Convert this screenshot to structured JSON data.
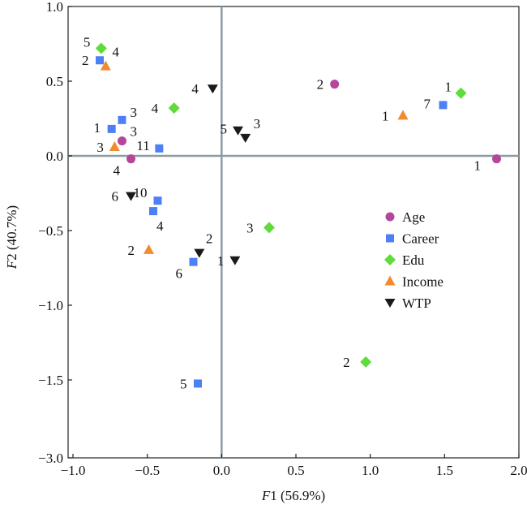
{
  "chart_data": {
    "type": "scatter",
    "title": "",
    "xlabel_italic": "F",
    "xlabel_rest": "1 (56.9%)",
    "ylabel_italic": "F",
    "ylabel_rest": "2 (40.7%)",
    "xlim": [
      -1.0,
      2.0
    ],
    "ylim_display": [
      -3.0,
      1.0
    ],
    "y_axis_break": "between -1.5 and -3.0",
    "x_ticks": [
      "−1.0",
      "−0.5",
      "0.0",
      "0.5",
      "1.0",
      "1.5",
      "2.0"
    ],
    "y_ticks": [
      "1.0",
      "0.5",
      "0.0",
      "−0.5",
      "−1.0",
      "−1.5",
      "−3.0"
    ],
    "grid": false,
    "reference_lines": [
      "x = 0",
      "y = 0"
    ],
    "legend_position": "right-middle",
    "series": [
      {
        "name": "Age",
        "marker": "circle",
        "color": "#b5479b",
        "points": [
          {
            "label": "1",
            "x": 1.85,
            "y": -0.02
          },
          {
            "label": "2",
            "x": 0.76,
            "y": 0.48
          },
          {
            "label": "3",
            "x": -0.67,
            "y": 0.1
          },
          {
            "label": "4",
            "x": -0.61,
            "y": -0.02
          }
        ]
      },
      {
        "name": "Career",
        "marker": "square",
        "color": "#4f7ff5",
        "points": [
          {
            "label": "1",
            "x": -0.74,
            "y": 0.18
          },
          {
            "label": "2",
            "x": -0.82,
            "y": 0.64
          },
          {
            "label": "3",
            "x": -0.67,
            "y": 0.24
          },
          {
            "label": "4",
            "x": -0.46,
            "y": -0.37
          },
          {
            "label": "5",
            "x": -0.16,
            "y": -1.57
          },
          {
            "label": "6",
            "x": -0.19,
            "y": -0.71
          },
          {
            "label": "7",
            "x": 1.49,
            "y": 0.34
          },
          {
            "label": "10",
            "x": -0.43,
            "y": -0.3
          },
          {
            "label": "11",
            "x": -0.42,
            "y": 0.05
          }
        ]
      },
      {
        "name": "Edu",
        "marker": "diamond",
        "color": "#5fdc3c",
        "points": [
          {
            "label": "1",
            "x": 1.61,
            "y": 0.42
          },
          {
            "label": "2",
            "x": 0.97,
            "y": -1.38
          },
          {
            "label": "3",
            "x": 0.32,
            "y": -0.48
          },
          {
            "label": "4",
            "x": -0.32,
            "y": 0.32
          },
          {
            "label": "5",
            "x": -0.81,
            "y": 0.72
          }
        ]
      },
      {
        "name": "Income",
        "marker": "triangle-up",
        "color": "#f28a2e",
        "points": [
          {
            "label": "1",
            "x": 1.22,
            "y": 0.27
          },
          {
            "label": "2",
            "x": -0.49,
            "y": -0.63
          },
          {
            "label": "3",
            "x": -0.72,
            "y": 0.06
          },
          {
            "label": "4",
            "x": -0.78,
            "y": 0.6
          }
        ]
      },
      {
        "name": "WTP",
        "marker": "triangle-down",
        "color": "#1a1a1a",
        "points": [
          {
            "label": "1",
            "x": 0.09,
            "y": -0.7
          },
          {
            "label": "2",
            "x": -0.15,
            "y": -0.65
          },
          {
            "label": "3",
            "x": 0.16,
            "y": 0.12
          },
          {
            "label": "4",
            "x": -0.06,
            "y": 0.45
          },
          {
            "label": "5",
            "x": 0.11,
            "y": 0.17
          },
          {
            "label": "6",
            "x": -0.61,
            "y": -0.27
          }
        ]
      }
    ]
  }
}
